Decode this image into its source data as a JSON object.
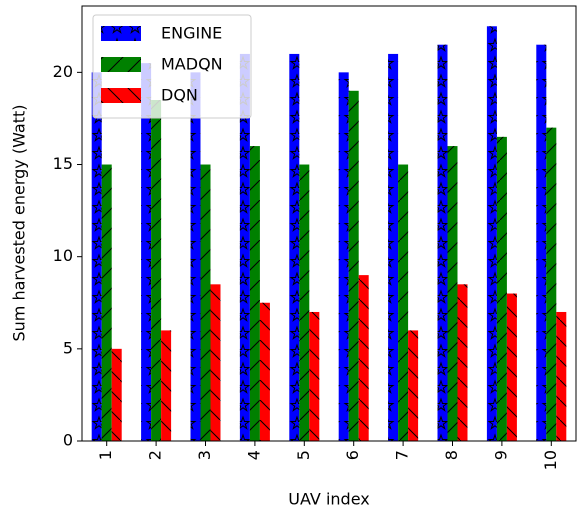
{
  "chart_data": {
    "type": "bar",
    "x_label": "UAV index",
    "y_label": "Sum harvested energy (Watt)",
    "categories": [
      "1",
      "2",
      "3",
      "4",
      "5",
      "6",
      "7",
      "8",
      "9",
      "10"
    ],
    "series": [
      {
        "name": "ENGINE",
        "color": "#0000ff",
        "values": [
          20,
          20.5,
          20,
          21,
          21,
          20,
          21,
          21.5,
          22.5,
          21.5
        ]
      },
      {
        "name": "MADQN",
        "color": "#008000",
        "values": [
          15,
          18.5,
          15,
          16,
          15,
          19,
          15,
          16,
          16.5,
          17
        ]
      },
      {
        "name": "DQN",
        "color": "#ff0000",
        "values": [
          5,
          6,
          8.5,
          7.5,
          7,
          9,
          6,
          8.5,
          8,
          7
        ]
      }
    ],
    "ylim": [
      0,
      23.6
    ],
    "yticks": [
      0,
      5,
      10,
      15,
      20
    ],
    "legend": "upper-left"
  }
}
